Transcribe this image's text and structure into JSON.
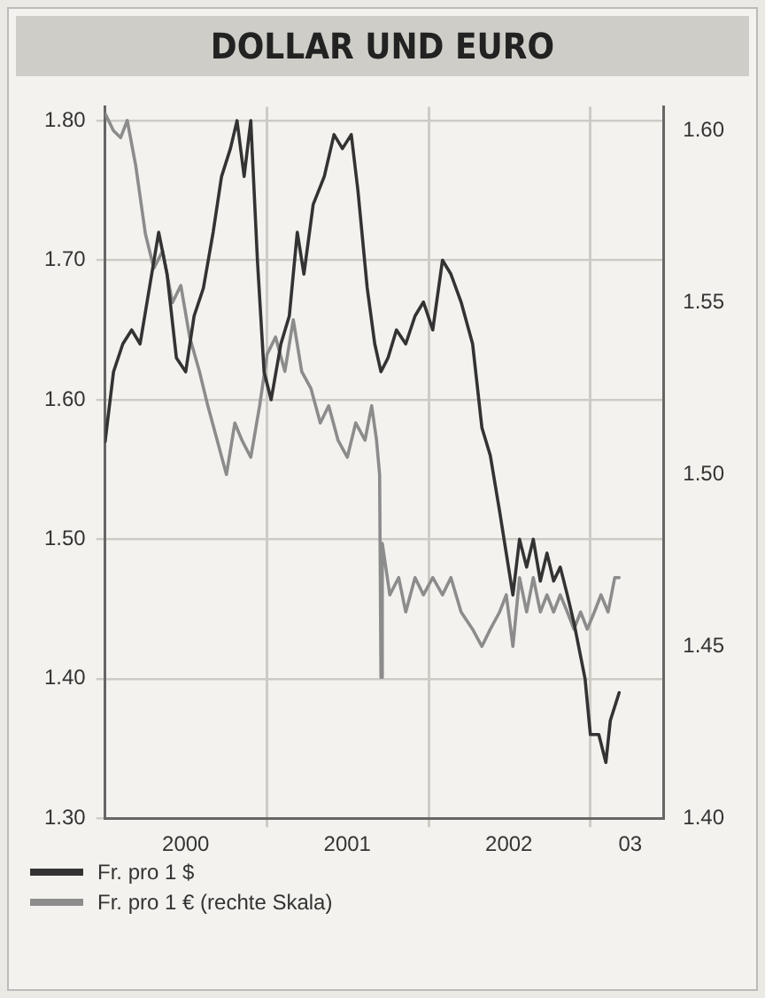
{
  "chart_data": {
    "type": "line",
    "title": "DOLLAR UND EURO",
    "legend": "bottom left",
    "grid": true,
    "marker": "none",
    "line_style": "solid",
    "xlim": [
      "2000-01-01",
      "2003-06-15"
    ],
    "xticks": [
      {
        "value": "2000-07-01",
        "label": "2000"
      },
      {
        "value": "2001-01-01",
        "label": null
      },
      {
        "value": "2001-07-01",
        "label": "2001"
      },
      {
        "value": "2002-01-01",
        "label": null
      },
      {
        "value": "2002-07-01",
        "label": "2002"
      },
      {
        "value": "2003-01-01",
        "label": null
      },
      {
        "value": "2003-04-01",
        "label": "03"
      }
    ],
    "ylim": [
      1.3,
      1.81
    ],
    "yticks": [
      {
        "value": 1.3,
        "label": "1.30"
      },
      {
        "value": 1.4,
        "label": "1.40"
      },
      {
        "value": 1.5,
        "label": "1.50"
      },
      {
        "value": 1.6,
        "label": "1.60"
      },
      {
        "value": 1.7,
        "label": "1.70"
      },
      {
        "value": 1.8,
        "label": "1.80"
      }
    ],
    "y2lim": [
      1.4,
      1.607
    ],
    "y2ticks": [
      {
        "value": 1.4,
        "label": "1.40"
      },
      1.45,
      {
        "value": 1.5,
        "label": "1.50"
      },
      1.55,
      {
        "value": 1.6,
        "label": "1.60"
      }
    ],
    "series": [
      {
        "name": "Fr. pro 1 $",
        "color": "#333333",
        "x": [
          "2000-01-01",
          "2000-01-20",
          "2000-02-10",
          "2000-03-01",
          "2000-03-20",
          "2000-04-10",
          "2000-05-01",
          "2000-05-20",
          "2000-06-10",
          "2000-07-01",
          "2000-07-20",
          "2000-08-10",
          "2000-09-01",
          "2000-09-20",
          "2000-10-10",
          "2000-10-25",
          "2000-11-10",
          "2000-11-25",
          "2000-12-10",
          "2000-12-25",
          "2001-01-10",
          "2001-02-01",
          "2001-02-20",
          "2001-03-10",
          "2001-03-25",
          "2001-04-15",
          "2001-05-10",
          "2001-06-01",
          "2001-06-20",
          "2001-07-10",
          "2001-07-25",
          "2001-08-15",
          "2001-09-01",
          "2001-09-15",
          "2001-10-01",
          "2001-10-20",
          "2001-11-10",
          "2001-12-01",
          "2001-12-20",
          "2002-01-10",
          "2002-02-01",
          "2002-02-20",
          "2002-03-15",
          "2002-04-10",
          "2002-05-01",
          "2002-05-20",
          "2002-06-10",
          "2002-06-25",
          "2002-07-10",
          "2002-07-25",
          "2002-08-10",
          "2002-08-25",
          "2002-09-10",
          "2002-09-25",
          "2002-10-10",
          "2002-10-25",
          "2002-11-10",
          "2002-11-25",
          "2002-12-20",
          "2003-01-01",
          "2003-01-20",
          "2003-02-05",
          "2003-02-15",
          "2003-03-07"
        ],
        "values": [
          1.57,
          1.62,
          1.64,
          1.65,
          1.64,
          1.68,
          1.72,
          1.69,
          1.63,
          1.62,
          1.66,
          1.68,
          1.72,
          1.76,
          1.78,
          1.8,
          1.76,
          1.8,
          1.7,
          1.62,
          1.6,
          1.64,
          1.66,
          1.72,
          1.69,
          1.74,
          1.76,
          1.79,
          1.78,
          1.79,
          1.75,
          1.68,
          1.64,
          1.62,
          1.63,
          1.65,
          1.64,
          1.66,
          1.67,
          1.65,
          1.7,
          1.69,
          1.67,
          1.64,
          1.58,
          1.56,
          1.52,
          1.49,
          1.46,
          1.5,
          1.48,
          1.5,
          1.47,
          1.49,
          1.47,
          1.48,
          1.46,
          1.44,
          1.4,
          1.36,
          1.36,
          1.34,
          1.37,
          1.39
        ]
      },
      {
        "name": "Fr. pro 1 € (rechte Skala)",
        "color": "#8c8c8c",
        "axis": "y2",
        "x": [
          "2000-01-01",
          "2000-01-20",
          "2000-02-05",
          "2000-02-20",
          "2000-03-10",
          "2000-04-01",
          "2000-04-20",
          "2000-05-10",
          "2000-06-01",
          "2000-06-20",
          "2000-07-10",
          "2000-08-01",
          "2000-08-20",
          "2000-09-10",
          "2000-10-01",
          "2000-10-20",
          "2000-11-05",
          "2000-11-25",
          "2000-12-15",
          "2001-01-01",
          "2001-01-20",
          "2001-02-10",
          "2001-03-01",
          "2001-03-20",
          "2001-04-10",
          "2001-05-01",
          "2001-05-20",
          "2001-06-10",
          "2001-07-01",
          "2001-07-20",
          "2001-08-10",
          "2001-08-25",
          "2001-09-05",
          "2001-09-12",
          "2001-09-15",
          "2001-09-18",
          "2001-10-05",
          "2001-10-25",
          "2001-11-10",
          "2001-12-01",
          "2001-12-20",
          "2002-01-10",
          "2002-02-01",
          "2002-02-20",
          "2002-03-15",
          "2002-04-10",
          "2002-05-01",
          "2002-05-20",
          "2002-06-10",
          "2002-06-25",
          "2002-07-10",
          "2002-07-25",
          "2002-08-10",
          "2002-08-25",
          "2002-09-10",
          "2002-09-25",
          "2002-10-10",
          "2002-10-25",
          "2002-11-10",
          "2002-11-25",
          "2002-12-10",
          "2002-12-25",
          "2003-01-10",
          "2003-01-25",
          "2003-02-10",
          "2003-02-25",
          "2003-03-07"
        ],
        "values": [
          1.605,
          1.6,
          1.598,
          1.603,
          1.59,
          1.57,
          1.56,
          1.565,
          1.55,
          1.555,
          1.54,
          1.53,
          1.52,
          1.51,
          1.5,
          1.515,
          1.51,
          1.505,
          1.52,
          1.535,
          1.54,
          1.53,
          1.545,
          1.53,
          1.525,
          1.515,
          1.52,
          1.51,
          1.505,
          1.515,
          1.51,
          1.52,
          1.51,
          1.5,
          1.441,
          1.48,
          1.465,
          1.47,
          1.46,
          1.47,
          1.465,
          1.47,
          1.465,
          1.47,
          1.46,
          1.455,
          1.45,
          1.455,
          1.46,
          1.465,
          1.45,
          1.47,
          1.46,
          1.47,
          1.46,
          1.465,
          1.46,
          1.465,
          1.46,
          1.455,
          1.46,
          1.455,
          1.46,
          1.465,
          1.46,
          1.47,
          1.47
        ]
      }
    ]
  }
}
